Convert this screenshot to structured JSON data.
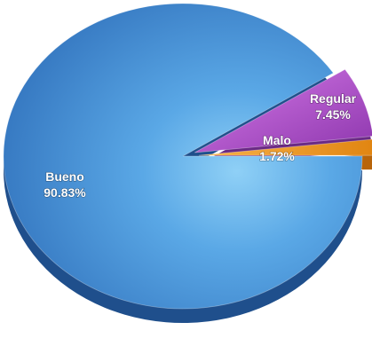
{
  "chart_data": {
    "type": "pie",
    "slices": [
      {
        "label": "Bueno",
        "value": 90.83,
        "display": "90.83%",
        "color": "#3f86d2"
      },
      {
        "label": "Regular",
        "value": 7.45,
        "display": "7.45%",
        "color": "#a94fc6"
      },
      {
        "label": "Malo",
        "value": 1.72,
        "display": "1.72%",
        "color": "#f39a2a"
      }
    ],
    "legend": "none",
    "style": "3d-exploded"
  }
}
